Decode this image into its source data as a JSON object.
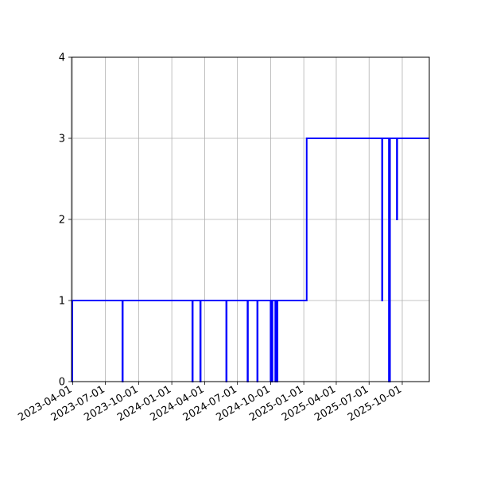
{
  "chart_data": {
    "type": "line",
    "title": "",
    "xlabel": "",
    "ylabel": "",
    "x_axis": "date",
    "xlim": [
      "2023-03-29",
      "2025-12-15"
    ],
    "ylim": [
      0,
      4
    ],
    "xticks": [
      "2023-04-01",
      "2023-07-01",
      "2023-10-01",
      "2024-01-01",
      "2024-04-01",
      "2024-07-01",
      "2024-10-01",
      "2025-01-01",
      "2025-04-01",
      "2025-07-01",
      "2025-10-01"
    ],
    "yticks": [
      0,
      1,
      2,
      3,
      4
    ],
    "grid": true,
    "line_color": "#0000ff",
    "grid_color": "#b0b0b0",
    "step": true,
    "series": [
      {
        "x": [
          "2023-03-29",
          "2023-03-30",
          "2023-03-31",
          "2023-04-01",
          "2023-04-02",
          "2023-08-16",
          "2023-08-17",
          "2023-08-18",
          "2024-02-26",
          "2024-02-27",
          "2024-02-28",
          "2024-03-19",
          "2024-03-20",
          "2024-03-21",
          "2024-05-30",
          "2024-05-31",
          "2024-06-01",
          "2024-07-28",
          "2024-07-29",
          "2024-07-30",
          "2024-08-24",
          "2024-08-25",
          "2024-08-26",
          "2024-09-30",
          "2024-10-01",
          "2024-10-02",
          "2024-10-04",
          "2024-10-05",
          "2024-10-06",
          "2024-10-13",
          "2024-10-14",
          "2024-10-15",
          "2024-10-18",
          "2024-10-19",
          "2024-10-20",
          "2025-01-08",
          "2025-01-09",
          "2025-01-10",
          "2025-08-05",
          "2025-08-06",
          "2025-08-07",
          "2025-08-24",
          "2025-08-25",
          "2025-08-26",
          "2025-08-27",
          "2025-08-28",
          "2025-09-15",
          "2025-09-16",
          "2025-09-17",
          "2025-12-15"
        ],
        "y": [
          0,
          0,
          1,
          1,
          1,
          1,
          0,
          1,
          1,
          0,
          1,
          1,
          0,
          1,
          1,
          0,
          1,
          1,
          0,
          1,
          1,
          0,
          1,
          1,
          0,
          1,
          1,
          0,
          1,
          1,
          0,
          1,
          1,
          0,
          1,
          1,
          3,
          3,
          3,
          1,
          3,
          3,
          0,
          3,
          0,
          3,
          3,
          2,
          3,
          3
        ]
      }
    ]
  }
}
